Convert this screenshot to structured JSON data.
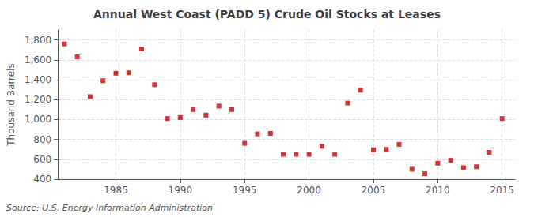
{
  "chart_data": {
    "type": "scatter",
    "title": "Annual West Coast (PADD 5) Crude Oil Stocks at Leases",
    "ylabel": "Thousand Barrels",
    "annotation": "Source: U.S. Energy Information Administration",
    "x": [
      1981,
      1982,
      1983,
      1984,
      1985,
      1986,
      1987,
      1988,
      1989,
      1990,
      1991,
      1992,
      1993,
      1994,
      1995,
      1996,
      1997,
      1998,
      1999,
      2000,
      2001,
      2002,
      2003,
      2004,
      2005,
      2006,
      2007,
      2008,
      2009,
      2010,
      2011,
      2012,
      2013,
      2014,
      2015
    ],
    "values": [
      1760,
      1630,
      1230,
      1390,
      1465,
      1470,
      1710,
      1350,
      1010,
      1020,
      1100,
      1045,
      1135,
      1100,
      760,
      855,
      860,
      650,
      650,
      650,
      730,
      650,
      1165,
      1295,
      695,
      700,
      750,
      500,
      455,
      560,
      590,
      515,
      525,
      670,
      1010
    ],
    "color": "#cc0000",
    "marker": "square",
    "xlim": [
      1980.5,
      2016
    ],
    "xticks": [
      1985,
      1990,
      1995,
      2000,
      2005,
      2010,
      2015
    ],
    "ylim": [
      400,
      1900
    ],
    "yticks": [
      400,
      600,
      800,
      {
        "value": 1000,
        "label": "1,000"
      },
      {
        "value": 1200,
        "label": "1,200"
      },
      {
        "value": 1400,
        "label": "1,400"
      },
      {
        "value": 1600,
        "label": "1,600"
      },
      {
        "value": 1800,
        "label": "1,800"
      }
    ],
    "grid": true
  }
}
